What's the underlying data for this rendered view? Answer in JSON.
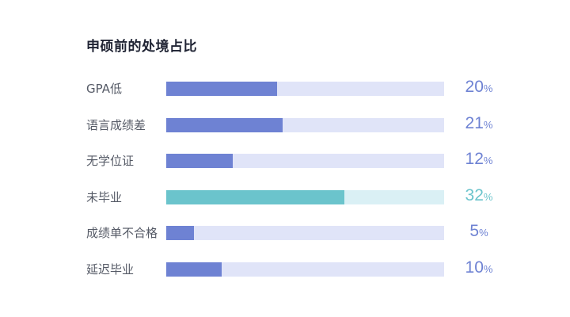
{
  "chart_data": {
    "type": "bar",
    "orientation": "horizontal",
    "title": "申硕前的处境占比",
    "categories": [
      "GPA低",
      "语言成绩差",
      "无学位证",
      "未毕业",
      "成绩单不合格",
      "延迟毕业"
    ],
    "values": [
      20,
      21,
      12,
      32,
      5,
      10
    ],
    "unit": "%",
    "xlim": [
      0,
      50
    ],
    "grid": false,
    "legend": "none",
    "highlight_index": 3
  },
  "colors": {
    "bar": "#6e82d3",
    "track": "#e0e4f8",
    "value_text": "#6e82d3",
    "highlight_bar": "#6bc4cc",
    "highlight_track": "#daf0f5",
    "highlight_text": "#6bc4cc"
  }
}
